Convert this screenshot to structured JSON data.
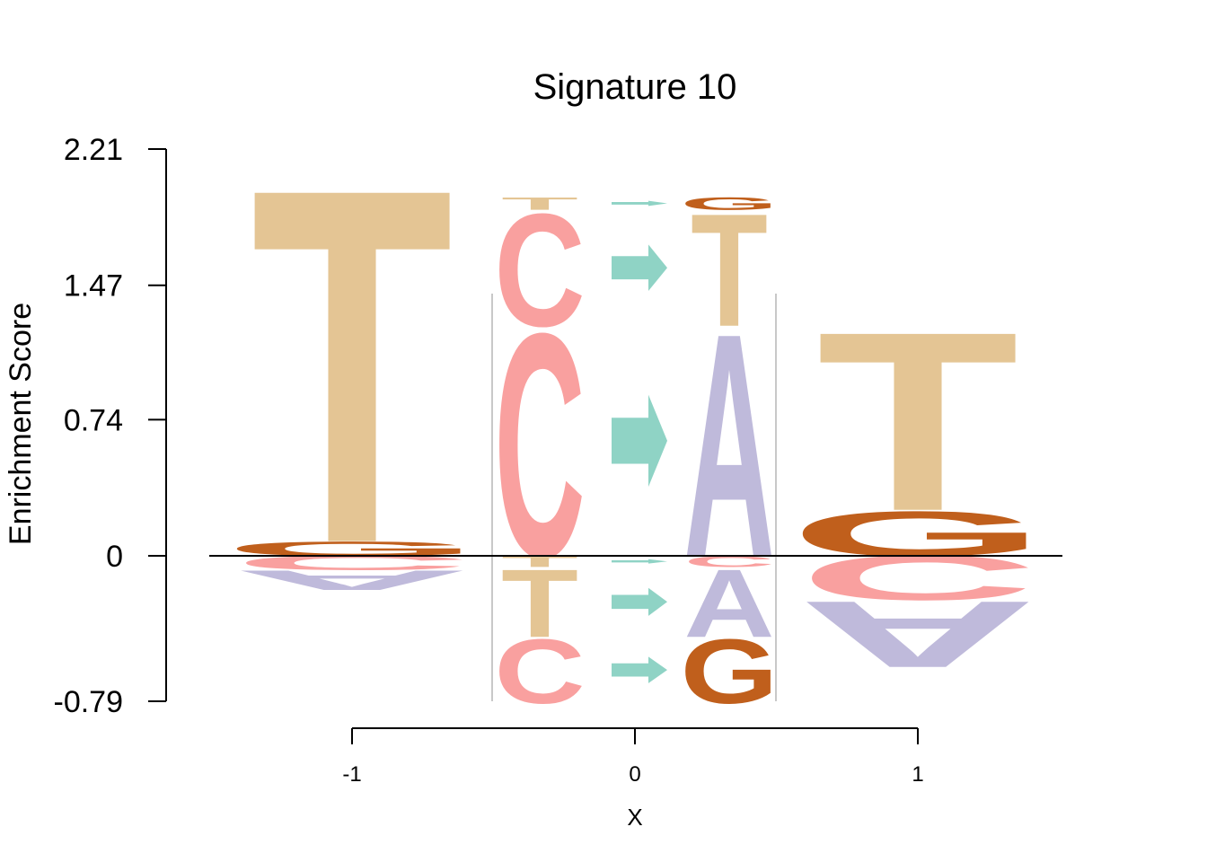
{
  "chart_data": {
    "type": "sequence-logo",
    "title": "Signature 10",
    "ylabel": "Enrichment Score",
    "xlabel": "X",
    "ylim": [
      -0.79,
      2.21
    ],
    "y_ticks": [
      "2.21",
      "1.47",
      "0.74",
      "0",
      "-0.79"
    ],
    "x_ticks": [
      "-1",
      "0",
      "1"
    ],
    "colors": {
      "A": "#bfbadb",
      "C": "#f9a09f",
      "G": "#c05f1c",
      "T": "#e4c594",
      "arrow": "#8fd3c5"
    },
    "positions": [
      {
        "x": -1,
        "above": [
          {
            "letter": "G",
            "score": 0.08
          },
          {
            "letter": "T",
            "score": 1.98
          }
        ],
        "below": [
          {
            "letter": "C",
            "score": 0.08
          },
          {
            "letter": "A",
            "score": 0.11
          }
        ]
      },
      {
        "x": 1,
        "above": [
          {
            "letter": "G",
            "score": 0.25
          },
          {
            "letter": "T",
            "score": 1.0
          }
        ],
        "below": [
          {
            "letter": "C",
            "score": 0.25
          },
          {
            "letter": "A",
            "score": 0.37
          }
        ]
      }
    ],
    "substitutions": {
      "above": [
        {
          "from": "C",
          "to": "A",
          "from_score": 1.25,
          "to_score": 1.25
        },
        {
          "from": "C",
          "to": "T",
          "from_score": 0.63,
          "to_score": 0.63
        },
        {
          "from": "T",
          "to": "G",
          "from_score": 0.07,
          "to_score": 0.07
        }
      ],
      "below": [
        {
          "from": "T",
          "to": "C",
          "from_score": 0.06,
          "to_score": 0.06
        },
        {
          "from": "T",
          "to": "A",
          "from_score": 0.38,
          "to_score": 0.38
        },
        {
          "from": "C",
          "to": "G",
          "from_score": 0.36,
          "to_score": 0.36
        }
      ]
    }
  }
}
